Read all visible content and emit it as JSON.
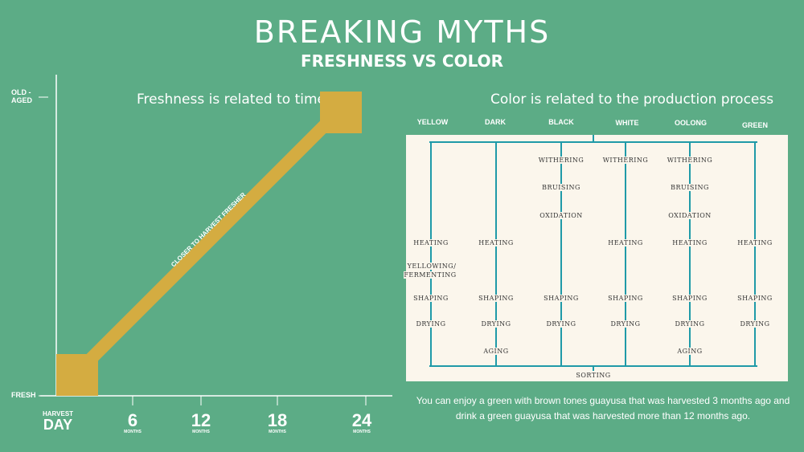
{
  "title": "BREAKING MYTHS",
  "subtitle": "FRESHNESS VS COLOR",
  "left_panel": {
    "title": "Freshness is related to time",
    "y_top_label": "OLD -\nAGED",
    "y_bottom_label": "FRESH",
    "diagonal_label": "CLOSER TO HARVEST FRESHER",
    "x_start": {
      "top": "HARVEST",
      "bottom": "DAY"
    },
    "x_ticks": [
      {
        "num": "6",
        "unit": "MONTHS"
      },
      {
        "num": "12",
        "unit": "MONTHS"
      },
      {
        "num": "18",
        "unit": "MONTHS"
      },
      {
        "num": "24",
        "unit": "MONTHS"
      }
    ],
    "colors": {
      "line": "#d4ac41",
      "axis": "#ffffff"
    }
  },
  "right_panel": {
    "title": "Color is related to the production process",
    "columns": [
      "YELLOW",
      "DARK",
      "BLACK",
      "WHITE",
      "OOLONG",
      "GREEN"
    ],
    "bottom_step": "SORTING",
    "steps": {
      "withering": "WITHERING",
      "bruising": "BRUISING",
      "oxidation": "OXIDATION",
      "heating": "HEATING",
      "yellowing": "YELLOWING/\nFERMENTING",
      "shaping": "SHAPING",
      "drying": "DRYING",
      "aging": "AGING"
    },
    "colors": {
      "lines": "#1f9aa8",
      "box": "#fbf6ec"
    }
  },
  "footer": {
    "line1": "You can enjoy a green with brown tones guayusa that was harvested 3 months ago and",
    "line2": "drink a green guayusa that was harvested more than 12 months ago."
  }
}
